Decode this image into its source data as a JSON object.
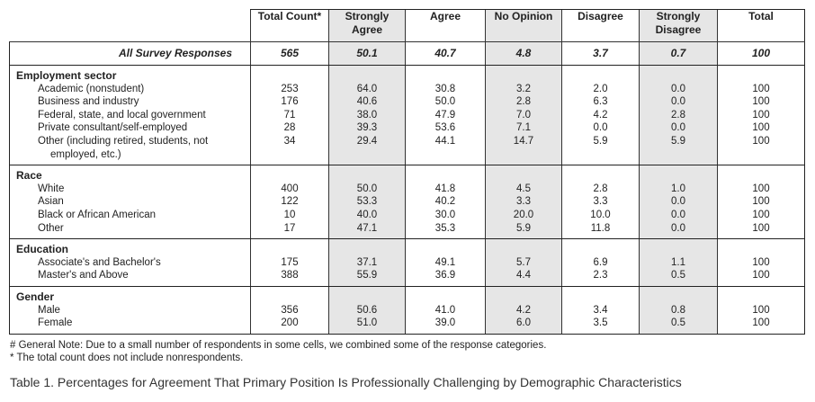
{
  "columns": [
    "Total Count*",
    "Strongly Agree",
    "Agree",
    "No Opinion",
    "Disagree",
    "Strongly Disagree",
    "Total"
  ],
  "all_responses": {
    "label": "All Survey Responses",
    "values": [
      "565",
      "50.1",
      "40.7",
      "4.8",
      "3.7",
      "0.7",
      "100"
    ]
  },
  "groups": [
    {
      "title": "Employment sector",
      "rows": [
        {
          "label": "Academic (nonstudent)",
          "values": [
            "253",
            "64.0",
            "30.8",
            "3.2",
            "2.0",
            "0.0",
            "100"
          ]
        },
        {
          "label": "Business and industry",
          "values": [
            "176",
            "40.6",
            "50.0",
            "2.8",
            "6.3",
            "0.0",
            "100"
          ]
        },
        {
          "label": "Federal, state, and local government",
          "values": [
            "71",
            "38.0",
            "47.9",
            "7.0",
            "4.2",
            "2.8",
            "100"
          ]
        },
        {
          "label": "Private consultant/self-employed",
          "values": [
            "28",
            "39.3",
            "53.6",
            "7.1",
            "0.0",
            "0.0",
            "100"
          ]
        },
        {
          "label": "Other (including retired, students, not",
          "label_cont": "employed, etc.)",
          "values": [
            "34",
            "29.4",
            "44.1",
            "14.7",
            "5.9",
            "5.9",
            "100"
          ]
        }
      ]
    },
    {
      "title": "Race",
      "rows": [
        {
          "label": "White",
          "values": [
            "400",
            "50.0",
            "41.8",
            "4.5",
            "2.8",
            "1.0",
            "100"
          ]
        },
        {
          "label": "Asian",
          "values": [
            "122",
            "53.3",
            "40.2",
            "3.3",
            "3.3",
            "0.0",
            "100"
          ]
        },
        {
          "label": "Black or African American",
          "values": [
            "10",
            "40.0",
            "30.0",
            "20.0",
            "10.0",
            "0.0",
            "100"
          ]
        },
        {
          "label": "Other",
          "values": [
            "17",
            "47.1",
            "35.3",
            "5.9",
            "11.8",
            "0.0",
            "100"
          ]
        }
      ]
    },
    {
      "title": "Education",
      "rows": [
        {
          "label": "Associate's and Bachelor's",
          "values": [
            "175",
            "37.1",
            "49.1",
            "5.7",
            "6.9",
            "1.1",
            "100"
          ]
        },
        {
          "label": "Master's and Above",
          "values": [
            "388",
            "55.9",
            "36.9",
            "4.4",
            "2.3",
            "0.5",
            "100"
          ]
        }
      ]
    },
    {
      "title": "Gender",
      "rows": [
        {
          "label": "Male",
          "values": [
            "356",
            "50.6",
            "41.0",
            "4.2",
            "3.4",
            "0.8",
            "100"
          ]
        },
        {
          "label": "Female",
          "values": [
            "200",
            "51.0",
            "39.0",
            "6.0",
            "3.5",
            "0.5",
            "100"
          ]
        }
      ]
    }
  ],
  "notes": [
    "# General Note: Due to a small number of respondents in some cells, we combined some of the response categories.",
    "* The total count does not include nonrespondents."
  ],
  "caption": "Table 1. Percentages for Agreement That Primary Position Is Professionally Challenging by Demographic Characteristics"
}
